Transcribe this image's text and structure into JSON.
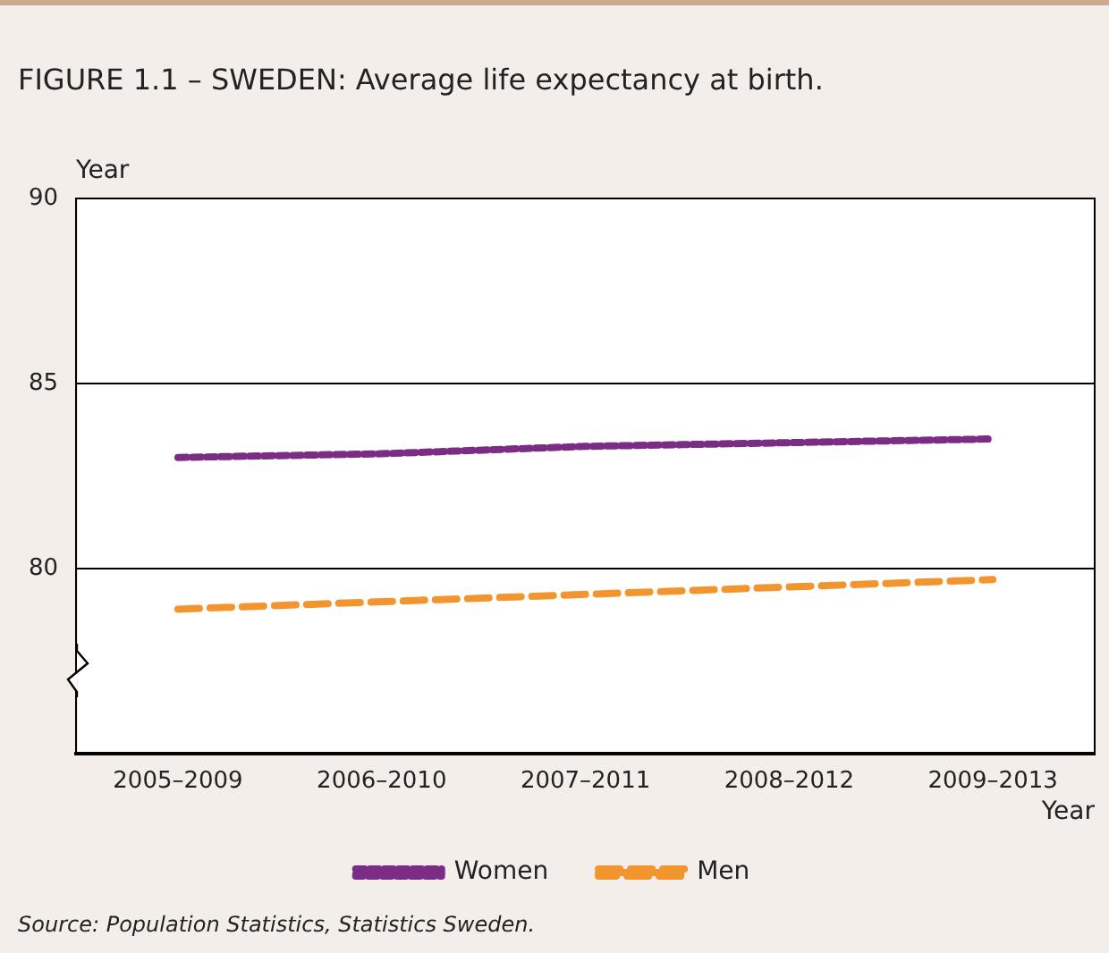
{
  "chart_data": {
    "type": "line",
    "title": "FIGURE 1.1 – SWEDEN: Average life expectancy at birth.",
    "xlabel": "Year",
    "ylabel": "Year",
    "categories": [
      "2005–2009",
      "2006–2010",
      "2007–2011",
      "2008–2012",
      "2009–2013"
    ],
    "series": [
      {
        "name": "Women",
        "color": "#7b2c85",
        "line_style": "dotted",
        "values": [
          83.0,
          83.1,
          83.3,
          83.4,
          83.5
        ]
      },
      {
        "name": "Men",
        "color": "#f2952f",
        "line_style": "dashed",
        "values": [
          78.9,
          79.1,
          79.3,
          79.5,
          79.7
        ]
      }
    ],
    "ylim": [
      75,
      90
    ],
    "yticks": [
      {
        "value": 75,
        "label": null
      },
      80,
      85,
      90
    ],
    "grid": "y",
    "legend": "bottom",
    "marker": "none",
    "annotations": [
      "Source: Population Statistics, Statistics Sweden."
    ]
  }
}
